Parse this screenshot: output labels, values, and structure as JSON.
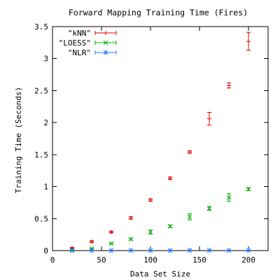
{
  "chart_data": {
    "type": "scatter",
    "title": "Forward Mapping Training Time (Fires)",
    "xlabel": "Data Set Size",
    "ylabel": "Training Time (Seconds)",
    "xlim": [
      0,
      220
    ],
    "ylim": [
      0,
      3.5
    ],
    "xticks": [
      0,
      50,
      100,
      150,
      200
    ],
    "xtick_labels": [
      "0",
      "50",
      "100",
      "150",
      "200"
    ],
    "yticks": [
      0,
      0.5,
      1,
      1.5,
      2,
      2.5,
      3,
      3.5
    ],
    "ytick_labels": [
      "0",
      "0.5",
      "1",
      "1.5",
      "2",
      "2.5",
      "3",
      "3.5"
    ],
    "grid": false,
    "legend_position": "top-left",
    "series": [
      {
        "name": "\"kNN\"",
        "color": "#dd0000",
        "marker": "plus",
        "points": [
          {
            "x": 20,
            "y": 0.04,
            "err": 0.01
          },
          {
            "x": 40,
            "y": 0.14,
            "err": 0.015
          },
          {
            "x": 60,
            "y": 0.29,
            "err": 0.015
          },
          {
            "x": 80,
            "y": 0.51,
            "err": 0.02
          },
          {
            "x": 100,
            "y": 0.79,
            "err": 0.02
          },
          {
            "x": 120,
            "y": 1.13,
            "err": 0.02
          },
          {
            "x": 140,
            "y": 1.54,
            "err": 0.02
          },
          {
            "x": 160,
            "y": 2.06,
            "err": 0.1
          },
          {
            "x": 180,
            "y": 2.58,
            "err": 0.04
          },
          {
            "x": 200,
            "y": 3.27,
            "err": 0.14
          }
        ]
      },
      {
        "name": "\"LOESS\"",
        "color": "#00aa00",
        "marker": "cross",
        "points": [
          {
            "x": 20,
            "y": 0.01,
            "err": 0.005
          },
          {
            "x": 40,
            "y": 0.03,
            "err": 0.01
          },
          {
            "x": 60,
            "y": 0.11,
            "err": 0.01
          },
          {
            "x": 80,
            "y": 0.18,
            "err": 0.015
          },
          {
            "x": 100,
            "y": 0.29,
            "err": 0.03
          },
          {
            "x": 120,
            "y": 0.38,
            "err": 0.02
          },
          {
            "x": 140,
            "y": 0.53,
            "err": 0.05
          },
          {
            "x": 160,
            "y": 0.66,
            "err": 0.03
          },
          {
            "x": 180,
            "y": 0.83,
            "err": 0.06
          },
          {
            "x": 200,
            "y": 0.96,
            "err": 0.02
          }
        ]
      },
      {
        "name": "\"NLR\"",
        "color": "#1e78ff",
        "marker": "star",
        "points": [
          {
            "x": 20,
            "y": 0.002,
            "err": 0.002
          },
          {
            "x": 40,
            "y": 0.003,
            "err": 0.002
          },
          {
            "x": 60,
            "y": 0.003,
            "err": 0.002
          },
          {
            "x": 80,
            "y": 0.003,
            "err": 0.002
          },
          {
            "x": 100,
            "y": 0.003,
            "err": 0.002
          },
          {
            "x": 120,
            "y": 0.003,
            "err": 0.002
          },
          {
            "x": 140,
            "y": 0.004,
            "err": 0.002
          },
          {
            "x": 160,
            "y": 0.004,
            "err": 0.002
          },
          {
            "x": 180,
            "y": 0.004,
            "err": 0.002
          },
          {
            "x": 200,
            "y": 0.004,
            "err": 0.002
          }
        ]
      }
    ]
  }
}
